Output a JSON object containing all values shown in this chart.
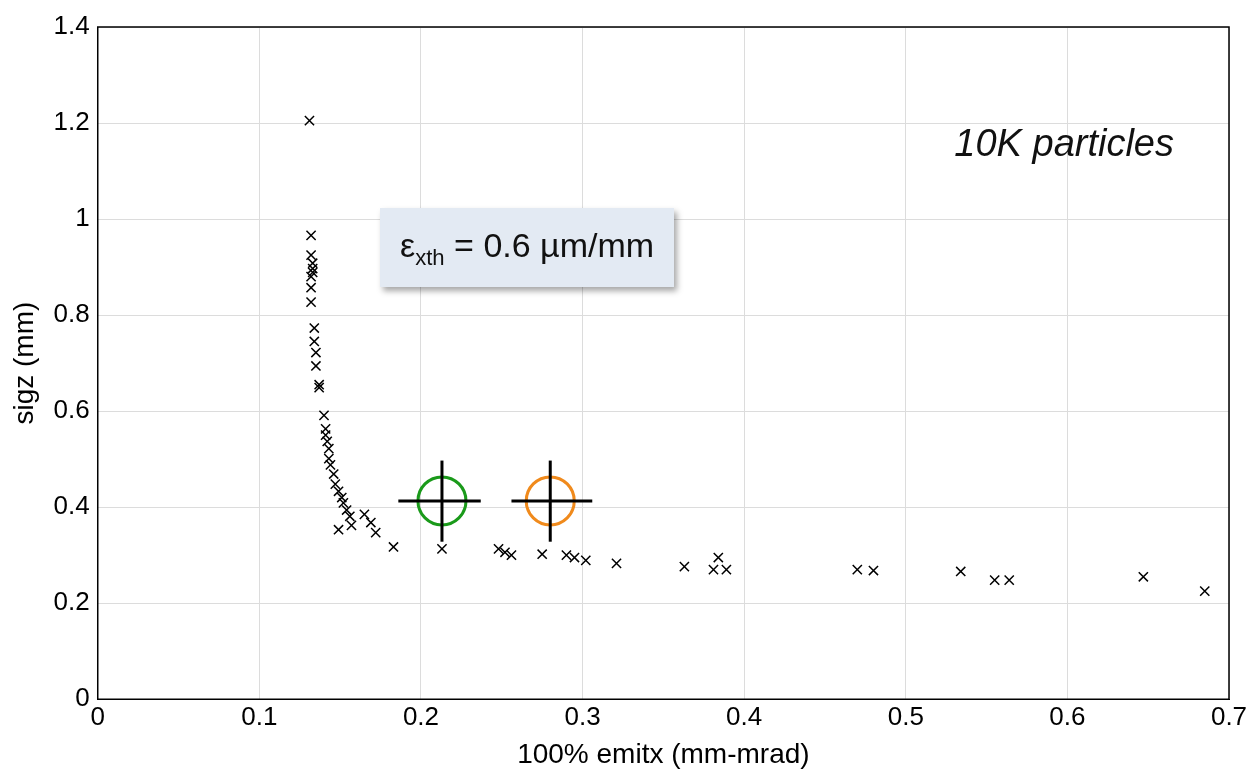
{
  "chart_data": {
    "type": "scatter",
    "xlabel": "100% emitx (mm-mrad)",
    "ylabel": "sigz (mm)",
    "xlim": [
      0,
      0.7
    ],
    "xticks": [
      0,
      0.1,
      0.2,
      0.3,
      0.4,
      0.5,
      0.6,
      0.7
    ],
    "ylim": [
      0,
      1.4
    ],
    "yticks": [
      0,
      0.2,
      0.4,
      0.6,
      0.8,
      1,
      1.2,
      1.4
    ],
    "grid": true,
    "legend": false,
    "marker": "cross",
    "annotations": [
      "10K particles",
      "ε$_{xth}$ = 0.6 µm/mm"
    ],
    "series": [
      {
        "color": "#000000",
        "x": [
          0.131,
          0.132,
          0.132,
          0.133,
          0.133,
          0.133,
          0.132,
          0.132,
          0.132,
          0.134,
          0.134,
          0.135,
          0.135,
          0.137,
          0.137,
          0.14,
          0.141,
          0.141,
          0.142,
          0.143,
          0.143,
          0.144,
          0.146,
          0.147,
          0.149,
          0.151,
          0.152,
          0.154,
          0.156,
          0.157,
          0.149,
          0.165,
          0.169,
          0.172,
          0.183,
          0.213,
          0.248,
          0.252,
          0.256,
          0.275,
          0.29,
          0.295,
          0.302,
          0.321,
          0.363,
          0.384,
          0.381,
          0.389,
          0.47,
          0.48,
          0.534,
          0.555,
          0.564,
          0.647,
          0.685
        ],
        "values": [
          1.205,
          0.966,
          0.925,
          0.908,
          0.897,
          0.889,
          0.88,
          0.857,
          0.827,
          0.773,
          0.745,
          0.722,
          0.694,
          0.655,
          0.649,
          0.591,
          0.563,
          0.55,
          0.537,
          0.522,
          0.501,
          0.488,
          0.469,
          0.448,
          0.433,
          0.42,
          0.409,
          0.394,
          0.381,
          0.362,
          0.353,
          0.385,
          0.368,
          0.347,
          0.317,
          0.313,
          0.313,
          0.306,
          0.3,
          0.302,
          0.3,
          0.295,
          0.289,
          0.283,
          0.276,
          0.295,
          0.27,
          0.27,
          0.27,
          0.268,
          0.266,
          0.248,
          0.248,
          0.255,
          0.225
        ]
      },
      {
        "color": "#1a9a1a",
        "marker": "circle",
        "x": [
          0.213
        ],
        "values": [
          0.413
        ],
        "errors": [
          [
            0.328,
            0.497
          ]
        ],
        "xerrors": [
          [
            0.186,
            0.237
          ]
        ]
      },
      {
        "color": "#f08a1c",
        "marker": "circle",
        "x": [
          0.28
        ],
        "values": [
          0.413
        ],
        "errors": [
          [
            0.328,
            0.497
          ]
        ],
        "xerrors": [
          [
            0.256,
            0.306
          ]
        ]
      }
    ]
  }
}
